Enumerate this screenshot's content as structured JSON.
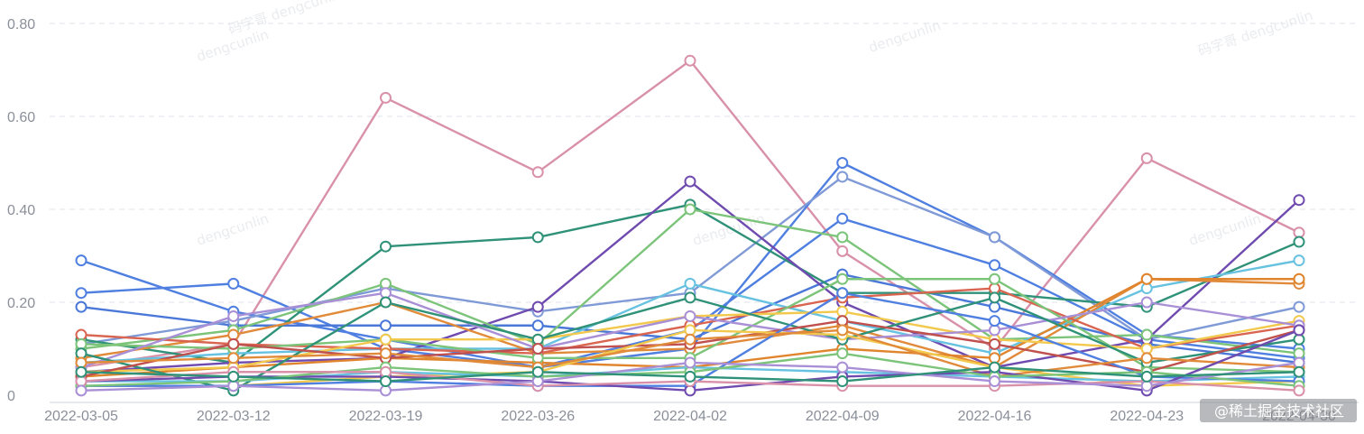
{
  "chart_data": {
    "type": "line",
    "x": [
      "2022-03-05",
      "2022-03-12",
      "2022-03-19",
      "2022-03-26",
      "2022-04-02",
      "2022-04-09",
      "2022-04-16",
      "2022-04-23",
      "2022-04-30"
    ],
    "yticks": [
      "0",
      "0.20",
      "0.40",
      "0.60",
      "0.80"
    ],
    "ylim": [
      0,
      0.8
    ],
    "grid": true,
    "series": [
      {
        "color": "#d991a9",
        "values": [
          0.06,
          0.11,
          0.64,
          0.48,
          0.72,
          0.31,
          0.1,
          0.51,
          0.35
        ]
      },
      {
        "color": "#4f7fe0",
        "values": [
          0.29,
          0.18,
          0.12,
          0.06,
          0.1,
          0.5,
          0.34,
          0.13,
          0.1
        ]
      },
      {
        "color": "#4f7fe0",
        "values": [
          0.22,
          0.24,
          0.1,
          0.06,
          0.14,
          0.38,
          0.28,
          0.12,
          0.08
        ]
      },
      {
        "color": "#4a78d8",
        "values": [
          0.19,
          0.15,
          0.15,
          0.15,
          0.12,
          0.26,
          0.19,
          0.11,
          0.07
        ]
      },
      {
        "color": "#7f9ad6",
        "values": [
          0.11,
          0.16,
          0.23,
          0.18,
          0.22,
          0.47,
          0.34,
          0.12,
          0.19
        ]
      },
      {
        "color": "#2f9278",
        "values": [
          0.12,
          0.07,
          0.32,
          0.34,
          0.41,
          0.22,
          0.22,
          0.19,
          0.33
        ]
      },
      {
        "color": "#6f4bb0",
        "values": [
          0.05,
          0.07,
          0.08,
          0.19,
          0.46,
          0.2,
          0.06,
          0.12,
          0.42
        ]
      },
      {
        "color": "#7cc47a",
        "values": [
          0.1,
          0.14,
          0.24,
          0.11,
          0.4,
          0.34,
          0.12,
          0.13,
          0.09
        ]
      },
      {
        "color": "#66c2e0",
        "values": [
          0.07,
          0.09,
          0.1,
          0.1,
          0.24,
          0.16,
          0.09,
          0.23,
          0.29
        ]
      },
      {
        "color": "#e08a3a",
        "values": [
          0.08,
          0.13,
          0.2,
          0.09,
          0.1,
          0.15,
          0.06,
          0.25,
          0.24
        ]
      },
      {
        "color": "#e0852e",
        "values": [
          0.04,
          0.06,
          0.08,
          0.07,
          0.06,
          0.1,
          0.08,
          0.25,
          0.25
        ]
      },
      {
        "color": "#d96450",
        "values": [
          0.13,
          0.11,
          0.1,
          0.09,
          0.15,
          0.21,
          0.23,
          0.1,
          0.15
        ]
      },
      {
        "color": "#7cc47a",
        "values": [
          0.11,
          0.1,
          0.12,
          0.08,
          0.08,
          0.25,
          0.25,
          0.06,
          0.05
        ]
      },
      {
        "color": "#f2c94c",
        "values": [
          0.05,
          0.06,
          0.12,
          0.12,
          0.17,
          0.18,
          0.12,
          0.1,
          0.16
        ]
      },
      {
        "color": "#a98fd6",
        "values": [
          0.06,
          0.17,
          0.22,
          0.1,
          0.17,
          0.12,
          0.14,
          0.2,
          0.15
        ]
      },
      {
        "color": "#2f9278",
        "values": [
          0.09,
          0.01,
          0.2,
          0.12,
          0.21,
          0.12,
          0.21,
          0.07,
          0.12
        ]
      },
      {
        "color": "#c0504d",
        "values": [
          0.04,
          0.11,
          0.08,
          0.1,
          0.11,
          0.16,
          0.11,
          0.05,
          0.14
        ]
      },
      {
        "color": "#f2c94c",
        "values": [
          0.02,
          0.02,
          0.04,
          0.05,
          0.14,
          0.13,
          0.06,
          0.02,
          0.03
        ]
      },
      {
        "color": "#66c2e0",
        "values": [
          0.03,
          0.03,
          0.05,
          0.04,
          0.06,
          0.05,
          0.04,
          0.03,
          0.04
        ]
      },
      {
        "color": "#4f7fe0",
        "values": [
          0.02,
          0.02,
          0.03,
          0.02,
          0.02,
          0.22,
          0.16,
          0.04,
          0.03
        ]
      },
      {
        "color": "#e08a3a",
        "values": [
          0.07,
          0.08,
          0.09,
          0.06,
          0.12,
          0.14,
          0.04,
          0.08,
          0.06
        ]
      },
      {
        "color": "#6f4bb0",
        "values": [
          0.03,
          0.04,
          0.04,
          0.03,
          0.01,
          0.04,
          0.05,
          0.01,
          0.14
        ]
      },
      {
        "color": "#7cc47a",
        "values": [
          0.02,
          0.03,
          0.06,
          0.04,
          0.05,
          0.09,
          0.04,
          0.05,
          0.02
        ]
      },
      {
        "color": "#d991a9",
        "values": [
          0.03,
          0.05,
          0.05,
          0.02,
          0.03,
          0.02,
          0.02,
          0.03,
          0.01
        ]
      },
      {
        "color": "#a98fd6",
        "values": [
          0.01,
          0.02,
          0.01,
          0.03,
          0.07,
          0.06,
          0.03,
          0.02,
          0.07
        ]
      },
      {
        "color": "#2f9278",
        "values": [
          0.05,
          0.04,
          0.03,
          0.05,
          0.04,
          0.03,
          0.06,
          0.04,
          0.05
        ]
      }
    ]
  },
  "watermarks": [
    "dengcunlin",
    "dengcunlin",
    "码字哥 dengcunlin",
    "码字哥 dengcunlin",
    "dengcunlin",
    "dengcunlin",
    "dengcunlin"
  ],
  "branding": {
    "text": "@稀土掘金技术社区"
  }
}
